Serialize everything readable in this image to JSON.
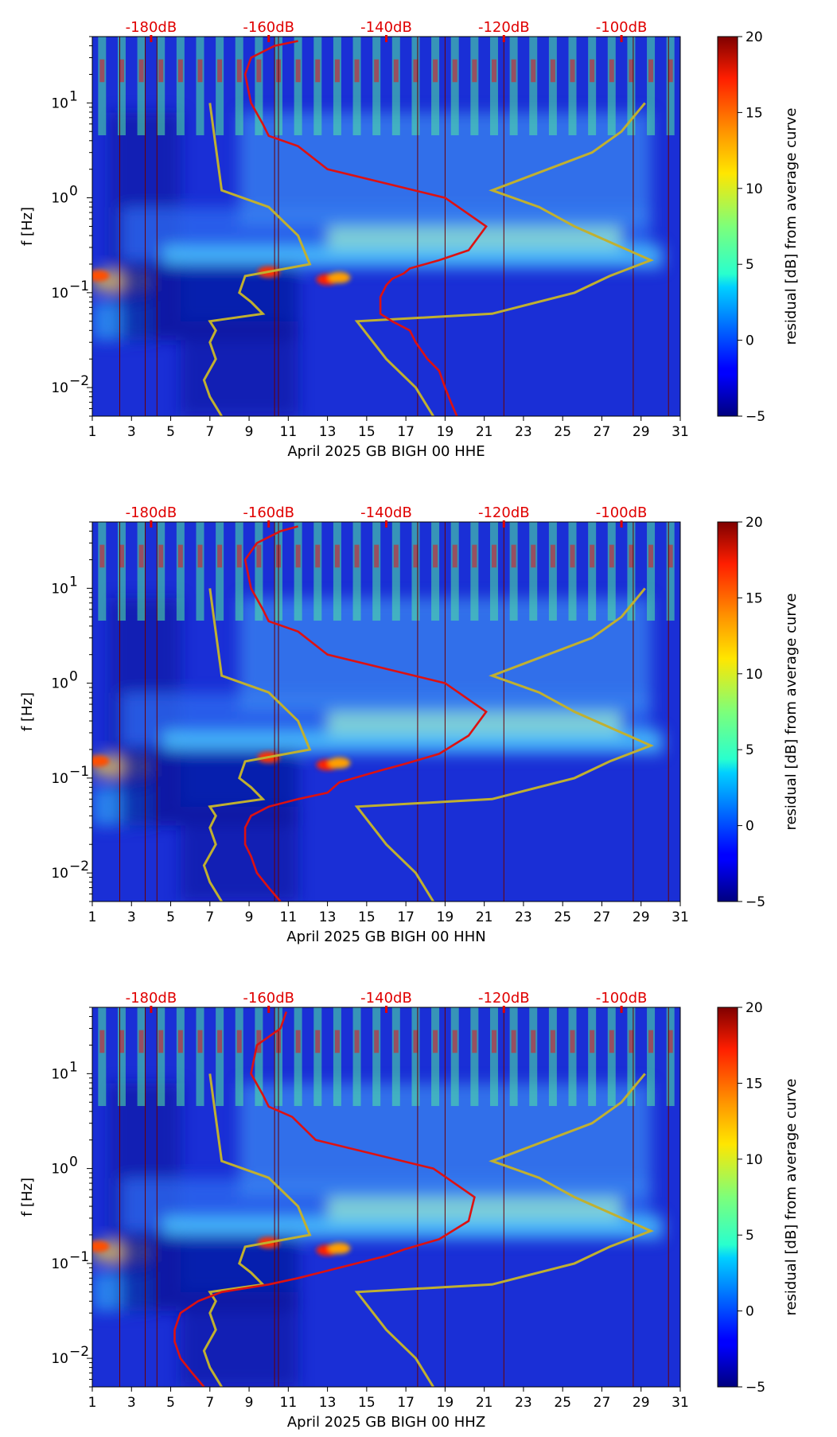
{
  "page": {
    "background": "#ffffff"
  },
  "colors": {
    "psd_line": "#dd1111",
    "noise_model": "#c0b030",
    "top_labels": "#e00000",
    "colormap": "jet"
  },
  "chart_data": [
    {
      "type": "heatmap",
      "xlabel": "April 2025 GB BIGH 00 HHE",
      "ylabel": "f [Hz]",
      "yscale": "log",
      "ylim": [
        0.005,
        50
      ],
      "xlim": [
        1,
        31
      ],
      "x_ticks": [
        "1",
        "3",
        "5",
        "7",
        "9",
        "11",
        "13",
        "15",
        "17",
        "19",
        "21",
        "23",
        "25",
        "27",
        "29",
        "31"
      ],
      "y_ticks": [
        {
          "value": 0.01,
          "base": "10",
          "exp": "−2"
        },
        {
          "value": 0.1,
          "base": "10",
          "exp": "−1"
        },
        {
          "value": 1,
          "base": "10",
          "exp": "0"
        },
        {
          "value": 10,
          "base": "10",
          "exp": "1"
        }
      ],
      "top_axis": {
        "labels": [
          "-180dB",
          "-160dB",
          "-140dB",
          "-120dB",
          "-100dB"
        ],
        "values": [
          -180,
          -160,
          -140,
          -120,
          -100
        ],
        "range": [
          -190,
          -90
        ]
      },
      "colorbar": {
        "label": "residual [dB] from average curve",
        "range": [
          -5,
          20
        ],
        "ticks": [
          "−5",
          "0",
          "5",
          "10",
          "15",
          "20"
        ]
      },
      "psd_curve": {
        "db": [
          -128,
          -129,
          -130,
          -131,
          -133,
          -135,
          -136,
          -139,
          -141,
          -141,
          -141,
          -140,
          -139,
          -137,
          -136,
          -131,
          -126,
          -123,
          -130,
          -150,
          -155,
          -160,
          -161,
          -163,
          -164,
          -163,
          -159,
          -155
        ],
        "f": [
          0.005,
          0.007,
          0.01,
          0.015,
          0.02,
          0.03,
          0.04,
          0.05,
          0.06,
          0.07,
          0.09,
          0.12,
          0.14,
          0.16,
          0.18,
          0.22,
          0.28,
          0.5,
          1.0,
          2.0,
          3.5,
          4.5,
          6,
          10,
          20,
          30,
          40,
          45
        ]
      },
      "noise_models": {
        "low": {
          "db": [
            -168,
            -170,
            -171,
            -169,
            -170,
            -169,
            -170,
            -161,
            -163,
            -165,
            -164,
            -153,
            -155,
            -160,
            -168,
            -170
          ],
          "f": [
            0.005,
            0.008,
            0.012,
            0.02,
            0.03,
            0.04,
            0.05,
            0.06,
            0.08,
            0.1,
            0.15,
            0.2,
            0.4,
            0.8,
            1.2,
            10
          ]
        },
        "high": {
          "db": [
            -132,
            -135,
            -140,
            -145,
            -122,
            -108,
            -102,
            -95,
            -108,
            -114,
            -122,
            -105,
            -100,
            -96
          ],
          "f": [
            0.005,
            0.01,
            0.02,
            0.05,
            0.06,
            0.1,
            0.15,
            0.22,
            0.5,
            0.8,
            1.2,
            3,
            5,
            10
          ]
        }
      }
    },
    {
      "type": "heatmap",
      "xlabel": "April 2025 GB BIGH 00 HHN",
      "ylabel": "f [Hz]",
      "yscale": "log",
      "ylim": [
        0.005,
        50
      ],
      "xlim": [
        1,
        31
      ],
      "x_ticks": [
        "1",
        "3",
        "5",
        "7",
        "9",
        "11",
        "13",
        "15",
        "17",
        "19",
        "21",
        "23",
        "25",
        "27",
        "29",
        "31"
      ],
      "y_ticks": [
        {
          "value": 0.01,
          "base": "10",
          "exp": "−2"
        },
        {
          "value": 0.1,
          "base": "10",
          "exp": "−1"
        },
        {
          "value": 1,
          "base": "10",
          "exp": "0"
        },
        {
          "value": 10,
          "base": "10",
          "exp": "1"
        }
      ],
      "top_axis": {
        "labels": [
          "-180dB",
          "-160dB",
          "-140dB",
          "-120dB",
          "-100dB"
        ],
        "values": [
          -180,
          -160,
          -140,
          -120,
          -100
        ],
        "range": [
          -190,
          -90
        ]
      },
      "colorbar": {
        "label": "residual [dB] from average curve",
        "range": [
          -5,
          20
        ],
        "ticks": [
          "−5",
          "0",
          "5",
          "10",
          "15",
          "20"
        ]
      },
      "psd_curve": {
        "db": [
          -158,
          -160,
          -162,
          -163,
          -164,
          -164,
          -163,
          -160,
          -155,
          -150,
          -148,
          -141,
          -137,
          -131,
          -126,
          -123,
          -130,
          -150,
          -155,
          -160,
          -161,
          -163,
          -164,
          -162,
          -158,
          -155
        ],
        "f": [
          0.005,
          0.007,
          0.01,
          0.015,
          0.02,
          0.03,
          0.04,
          0.05,
          0.06,
          0.07,
          0.09,
          0.12,
          0.14,
          0.18,
          0.28,
          0.5,
          1.0,
          2.0,
          3.5,
          4.5,
          6,
          10,
          20,
          30,
          40,
          45
        ]
      },
      "noise_models": {
        "low": {
          "db": [
            -168,
            -170,
            -171,
            -169,
            -170,
            -169,
            -170,
            -161,
            -163,
            -165,
            -164,
            -153,
            -155,
            -160,
            -168,
            -170
          ],
          "f": [
            0.005,
            0.008,
            0.012,
            0.02,
            0.03,
            0.04,
            0.05,
            0.06,
            0.08,
            0.1,
            0.15,
            0.2,
            0.4,
            0.8,
            1.2,
            10
          ]
        },
        "high": {
          "db": [
            -132,
            -135,
            -140,
            -145,
            -122,
            -108,
            -102,
            -95,
            -108,
            -114,
            -122,
            -105,
            -100,
            -96
          ],
          "f": [
            0.005,
            0.01,
            0.02,
            0.05,
            0.06,
            0.1,
            0.15,
            0.22,
            0.5,
            0.8,
            1.2,
            3,
            5,
            10
          ]
        }
      }
    },
    {
      "type": "heatmap",
      "xlabel": "April 2025 GB BIGH 00 HHZ",
      "ylabel": "f [Hz]",
      "yscale": "log",
      "ylim": [
        0.005,
        50
      ],
      "xlim": [
        1,
        31
      ],
      "x_ticks": [
        "1",
        "3",
        "5",
        "7",
        "9",
        "11",
        "13",
        "15",
        "17",
        "19",
        "21",
        "23",
        "25",
        "27",
        "29",
        "31"
      ],
      "y_ticks": [
        {
          "value": 0.01,
          "base": "10",
          "exp": "−2"
        },
        {
          "value": 0.1,
          "base": "10",
          "exp": "−1"
        },
        {
          "value": 1,
          "base": "10",
          "exp": "0"
        },
        {
          "value": 10,
          "base": "10",
          "exp": "1"
        }
      ],
      "top_axis": {
        "labels": [
          "-180dB",
          "-160dB",
          "-140dB",
          "-120dB",
          "-100dB"
        ],
        "values": [
          -180,
          -160,
          -140,
          -120,
          -100
        ],
        "range": [
          -190,
          -90
        ]
      },
      "colorbar": {
        "label": "residual [dB] from average curve",
        "range": [
          -5,
          20
        ],
        "ticks": [
          "−5",
          "0",
          "5",
          "10",
          "15",
          "20"
        ]
      },
      "psd_curve": {
        "db": [
          -171,
          -173,
          -175,
          -176,
          -176,
          -175,
          -172,
          -168,
          -160,
          -155,
          -148,
          -140,
          -137,
          -131,
          -126,
          -125,
          -132,
          -152,
          -156,
          -160,
          -161,
          -163,
          -162,
          -158,
          -157
        ],
        "f": [
          0.005,
          0.007,
          0.01,
          0.015,
          0.02,
          0.03,
          0.04,
          0.05,
          0.06,
          0.07,
          0.09,
          0.12,
          0.14,
          0.18,
          0.28,
          0.5,
          1.0,
          2.0,
          3.5,
          4.5,
          6,
          10,
          20,
          30,
          45
        ]
      },
      "noise_models": {
        "low": {
          "db": [
            -168,
            -170,
            -171,
            -169,
            -170,
            -169,
            -170,
            -161,
            -163,
            -165,
            -164,
            -153,
            -155,
            -160,
            -168,
            -170
          ],
          "f": [
            0.005,
            0.008,
            0.012,
            0.02,
            0.03,
            0.04,
            0.05,
            0.06,
            0.08,
            0.1,
            0.15,
            0.2,
            0.4,
            0.8,
            1.2,
            10
          ]
        },
        "high": {
          "db": [
            -132,
            -135,
            -140,
            -145,
            -122,
            -108,
            -102,
            -95,
            -108,
            -114,
            -122,
            -105,
            -100,
            -96
          ],
          "f": [
            0.005,
            0.01,
            0.02,
            0.05,
            0.06,
            0.1,
            0.15,
            0.22,
            0.5,
            0.8,
            1.2,
            3,
            5,
            10
          ]
        }
      }
    }
  ]
}
